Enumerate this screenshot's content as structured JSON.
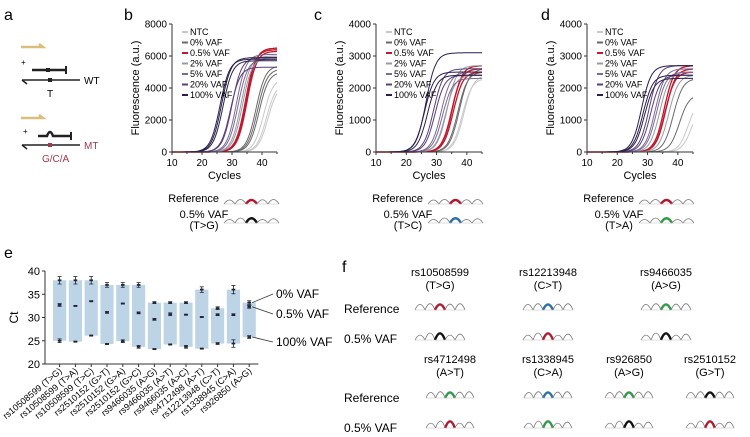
{
  "panel_labels": {
    "a": "a",
    "b": "b",
    "c": "c",
    "d": "d",
    "e": "e",
    "f": "f"
  },
  "colors": {
    "primer": "#d9bf7a",
    "red": "#b0192c",
    "blue": "#2a6fa8",
    "green": "#2e9a48",
    "black": "#111111",
    "bar": "#bcd4e6",
    "mt": "#a13a4a",
    "series": [
      "#c8c8c8",
      "#6a6a6a",
      "#c0182c",
      "#9a9aa4",
      "#7c6a94",
      "#5a3f7a",
      "#2a1f4a"
    ]
  },
  "schematic": {
    "wt_label": "WT",
    "wt_base": "T",
    "mt_label": "MT",
    "mt_base": "G/C/A",
    "plus": "+"
  },
  "chart_data": [
    {
      "id": "b",
      "type": "line",
      "xlabel": "Cycles",
      "ylabel": "Fluorescence (a.u.)",
      "xlim": [
        10,
        45
      ],
      "ylim": [
        0,
        8000
      ],
      "xticks": [
        10,
        20,
        30,
        40
      ],
      "yticks": [
        0,
        2000,
        4000,
        6000,
        8000
      ],
      "legend": [
        "NTC",
        "0% VAF",
        "0.5% VAF",
        "2% VAF",
        "5% VAF",
        "20% VAF",
        "100% VAF"
      ],
      "legend_position": "top-left",
      "series": [
        {
          "name": "NTC",
          "curves": [
            {
              "ct": 41.5,
              "plateau": 4300
            },
            {
              "ct": 40.5,
              "plateau": 4600
            },
            {
              "ct": 42.0,
              "plateau": 4200
            }
          ]
        },
        {
          "name": "0% VAF",
          "curves": [
            {
              "ct": 38.5,
              "plateau": 5200
            },
            {
              "ct": 39.0,
              "plateau": 5000
            },
            {
              "ct": 38.0,
              "plateau": 5400
            }
          ]
        },
        {
          "name": "0.5% VAF",
          "curves": [
            {
              "ct": 34.5,
              "plateau": 6400
            },
            {
              "ct": 35.0,
              "plateau": 6300
            },
            {
              "ct": 34.8,
              "plateau": 6500
            }
          ]
        },
        {
          "name": "2% VAF",
          "curves": [
            {
              "ct": 33.0,
              "plateau": 6000
            },
            {
              "ct": 33.5,
              "plateau": 5900
            }
          ]
        },
        {
          "name": "5% VAF",
          "curves": [
            {
              "ct": 31.5,
              "plateau": 6100
            },
            {
              "ct": 32.0,
              "plateau": 5800
            }
          ]
        },
        {
          "name": "20% VAF",
          "curves": [
            {
              "ct": 29.5,
              "plateau": 5300
            },
            {
              "ct": 30.0,
              "plateau": 5900
            }
          ]
        },
        {
          "name": "100% VAF",
          "curves": [
            {
              "ct": 26.0,
              "plateau": 5800
            },
            {
              "ct": 26.5,
              "plateau": 5900
            },
            {
              "ct": 27.0,
              "plateau": 5700
            }
          ]
        }
      ],
      "chromatogram": {
        "label_ref": "Reference",
        "label_var": "0.5% VAF",
        "label_sub": "(T>G)",
        "ref_color": "red",
        "var_color": "black"
      }
    },
    {
      "id": "c",
      "type": "line",
      "xlabel": "Cycles",
      "ylabel": "Fluorescence (a.u.)",
      "xlim": [
        10,
        45
      ],
      "ylim": [
        0,
        4000
      ],
      "xticks": [
        10,
        20,
        30,
        40
      ],
      "yticks": [
        0,
        1000,
        2000,
        3000,
        4000
      ],
      "legend": [
        "NTC",
        "0% VAF",
        "0.5% VAF",
        "2% VAF",
        "5% VAF",
        "20% VAF",
        "100% VAF"
      ],
      "legend_position": "top-left",
      "series": [
        {
          "name": "NTC",
          "curves": [
            {
              "ct": 38.5,
              "plateau": 2300
            },
            {
              "ct": 39.0,
              "plateau": 2400
            }
          ]
        },
        {
          "name": "0% VAF",
          "curves": [
            {
              "ct": 37.0,
              "plateau": 2500
            },
            {
              "ct": 37.5,
              "plateau": 2600
            }
          ]
        },
        {
          "name": "0.5% VAF",
          "curves": [
            {
              "ct": 35.0,
              "plateau": 2600
            },
            {
              "ct": 35.5,
              "plateau": 2500
            },
            {
              "ct": 35.2,
              "plateau": 2700
            }
          ]
        },
        {
          "name": "2% VAF",
          "curves": [
            {
              "ct": 33.0,
              "plateau": 2400
            },
            {
              "ct": 33.5,
              "plateau": 2700
            }
          ]
        },
        {
          "name": "5% VAF",
          "curves": [
            {
              "ct": 31.5,
              "plateau": 2500
            },
            {
              "ct": 32.0,
              "plateau": 2300
            }
          ]
        },
        {
          "name": "20% VAF",
          "curves": [
            {
              "ct": 29.0,
              "plateau": 2600
            },
            {
              "ct": 29.5,
              "plateau": 2400
            }
          ]
        },
        {
          "name": "100% VAF",
          "curves": [
            {
              "ct": 26.0,
              "plateau": 2500
            },
            {
              "ct": 26.5,
              "plateau": 3100
            },
            {
              "ct": 27.0,
              "plateau": 2400
            }
          ]
        }
      ],
      "chromatogram": {
        "label_ref": "Reference",
        "label_var": "0.5% VAF",
        "label_sub": "(T>C)",
        "ref_color": "red",
        "var_color": "blue"
      }
    },
    {
      "id": "d",
      "type": "line",
      "xlabel": "Cycles",
      "ylabel": "Fluorescence (a.u.)",
      "xlim": [
        10,
        45
      ],
      "ylim": [
        0,
        4000
      ],
      "xticks": [
        10,
        20,
        30,
        40
      ],
      "yticks": [
        0,
        1000,
        2000,
        3000,
        4000
      ],
      "legend": [
        "NTC",
        "0% VAF",
        "0.5% VAF",
        "2% VAF",
        "5% VAF",
        "20% VAF",
        "100% VAF"
      ],
      "legend_position": "top-left",
      "series": [
        {
          "name": "NTC",
          "curves": [
            {
              "ct": 43.5,
              "plateau": 1700
            },
            {
              "ct": 44.5,
              "plateau": 1500
            }
          ]
        },
        {
          "name": "0% VAF",
          "curves": [
            {
              "ct": 40.5,
              "plateau": 1800
            },
            {
              "ct": 38.5,
              "plateau": 2300
            }
          ]
        },
        {
          "name": "0.5% VAF",
          "curves": [
            {
              "ct": 35.5,
              "plateau": 2700
            },
            {
              "ct": 36.0,
              "plateau": 2600
            },
            {
              "ct": 35.8,
              "plateau": 2500
            }
          ]
        },
        {
          "name": "2% VAF",
          "curves": [
            {
              "ct": 34.0,
              "plateau": 2500
            },
            {
              "ct": 37.0,
              "plateau": 2400
            }
          ]
        },
        {
          "name": "5% VAF",
          "curves": [
            {
              "ct": 32.5,
              "plateau": 2600
            },
            {
              "ct": 33.0,
              "plateau": 2500
            }
          ]
        },
        {
          "name": "20% VAF",
          "curves": [
            {
              "ct": 30.5,
              "plateau": 2700
            },
            {
              "ct": 31.0,
              "plateau": 2400
            }
          ]
        },
        {
          "name": "100% VAF",
          "curves": [
            {
              "ct": 28.0,
              "plateau": 2700
            },
            {
              "ct": 28.5,
              "plateau": 2400
            },
            {
              "ct": 29.0,
              "plateau": 2300
            }
          ]
        }
      ],
      "chromatogram": {
        "label_ref": "Reference",
        "label_var": "0.5% VAF",
        "label_sub": "(T>A)",
        "ref_color": "red",
        "var_color": "green"
      }
    },
    {
      "id": "e",
      "type": "bar",
      "ylabel": "Ct",
      "ylim": [
        20,
        40
      ],
      "yticks": [
        20,
        25,
        30,
        35,
        40
      ],
      "categories": [
        "rs10508599 (T>G)",
        "rs10508599 (T>A)",
        "rs10508599 (T>C)",
        "rs2510152 (G>T)",
        "rs2510152 (G>A)",
        "rs2510152 (G>C)",
        "rs9466035 (A>G)",
        "rs9466035 (A>T)",
        "rs9466035 (A>C)",
        "rs4712498 (A>T)",
        "rs12213948 (C>T)",
        "rs1338945 (C>A)",
        "rs926850 (A>G)"
      ],
      "series": [
        {
          "name": "0% VAF",
          "values": [
            38.0,
            38.0,
            38.0,
            37.0,
            37.0,
            37.0,
            33.2,
            33.2,
            33.2,
            36.0,
            32.0,
            36.0,
            33.2
          ],
          "errors": [
            0.8,
            0.8,
            0.8,
            0.5,
            0.5,
            0.5,
            0.2,
            0.2,
            0.2,
            0.6,
            0.3,
            0.9,
            0.4
          ]
        },
        {
          "name": "0.5% VAF",
          "values": [
            32.7,
            32.5,
            33.5,
            31.1,
            33.0,
            31.0,
            29.6,
            30.7,
            30.6,
            30.1,
            30.6,
            30.6,
            32.3
          ],
          "errors": [
            0.3,
            0.1,
            0.1,
            0.2,
            0.1,
            0.2,
            0.2,
            0.3,
            0.1,
            0.1,
            0.2,
            0.2,
            0.3
          ]
        },
        {
          "name": "100% VAF",
          "values": [
            25.0,
            24.8,
            26.1,
            24.3,
            24.9,
            23.7,
            23.2,
            24.2,
            23.7,
            23.3,
            24.4,
            24.4,
            25.8
          ],
          "errors": [
            0.4,
            0.1,
            0.1,
            0.1,
            0.3,
            0.3,
            0.1,
            0.1,
            0.3,
            0.1,
            0.2,
            0.8,
            0.3
          ]
        }
      ],
      "annotations": [
        "0% VAF",
        "0.5% VAF",
        "100% VAF"
      ],
      "annotation_position": "right"
    }
  ],
  "panel_f": {
    "label_ref": "Reference",
    "label_var": "0.5% VAF",
    "snps": [
      {
        "id": "rs10508599",
        "sub": "(T>G)",
        "ref_color": "red",
        "var_color": "black"
      },
      {
        "id": "rs12213948",
        "sub": "(C>T)",
        "ref_color": "blue",
        "var_color": "red"
      },
      {
        "id": "rs9466035",
        "sub": "(A>G)",
        "ref_color": "green",
        "var_color": "black"
      },
      {
        "id": "rs4712498",
        "sub": "(A>T)",
        "ref_color": "green",
        "var_color": "red"
      },
      {
        "id": "rs1338945",
        "sub": "(C>A)",
        "ref_color": "blue",
        "var_color": "green"
      },
      {
        "id": "rs926850",
        "sub": "(A>G)",
        "ref_color": "green",
        "var_color": "black"
      },
      {
        "id": "rs2510152",
        "sub": "(G>T)",
        "ref_color": "black",
        "var_color": "red"
      }
    ]
  }
}
